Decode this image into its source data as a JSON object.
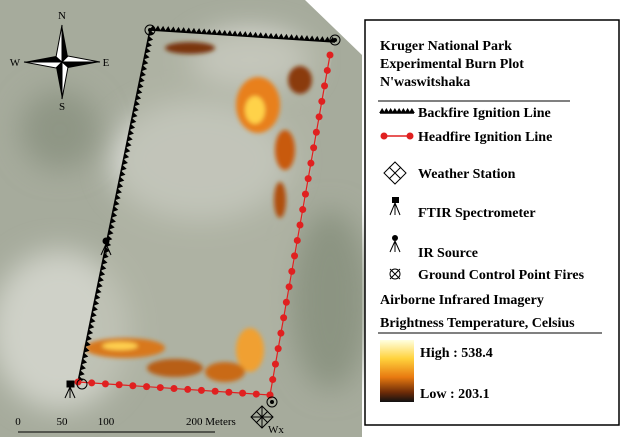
{
  "compass": {
    "n": "N",
    "s": "S",
    "e": "E",
    "w": "W"
  },
  "legend": {
    "title": [
      "Kruger National Park",
      "Experimental Burn Plot",
      "N'waswitshaka"
    ],
    "items": [
      "Backfire Ignition Line",
      "Headfire Ignition Line",
      "Weather Station",
      "FTIR Spectrometer",
      "IR Source",
      "Ground Control Point Fires"
    ],
    "imagery_title": "Airborne Infrared Imagery",
    "temp_title": "Brightness Temperature, Celsius",
    "high": "High : 538.4",
    "low": "Low : 203.1"
  },
  "scale_bar": {
    "labels": [
      "0",
      "50",
      "100",
      "200 Meters"
    ]
  },
  "map_labels": {
    "weather_station": "Wx"
  }
}
